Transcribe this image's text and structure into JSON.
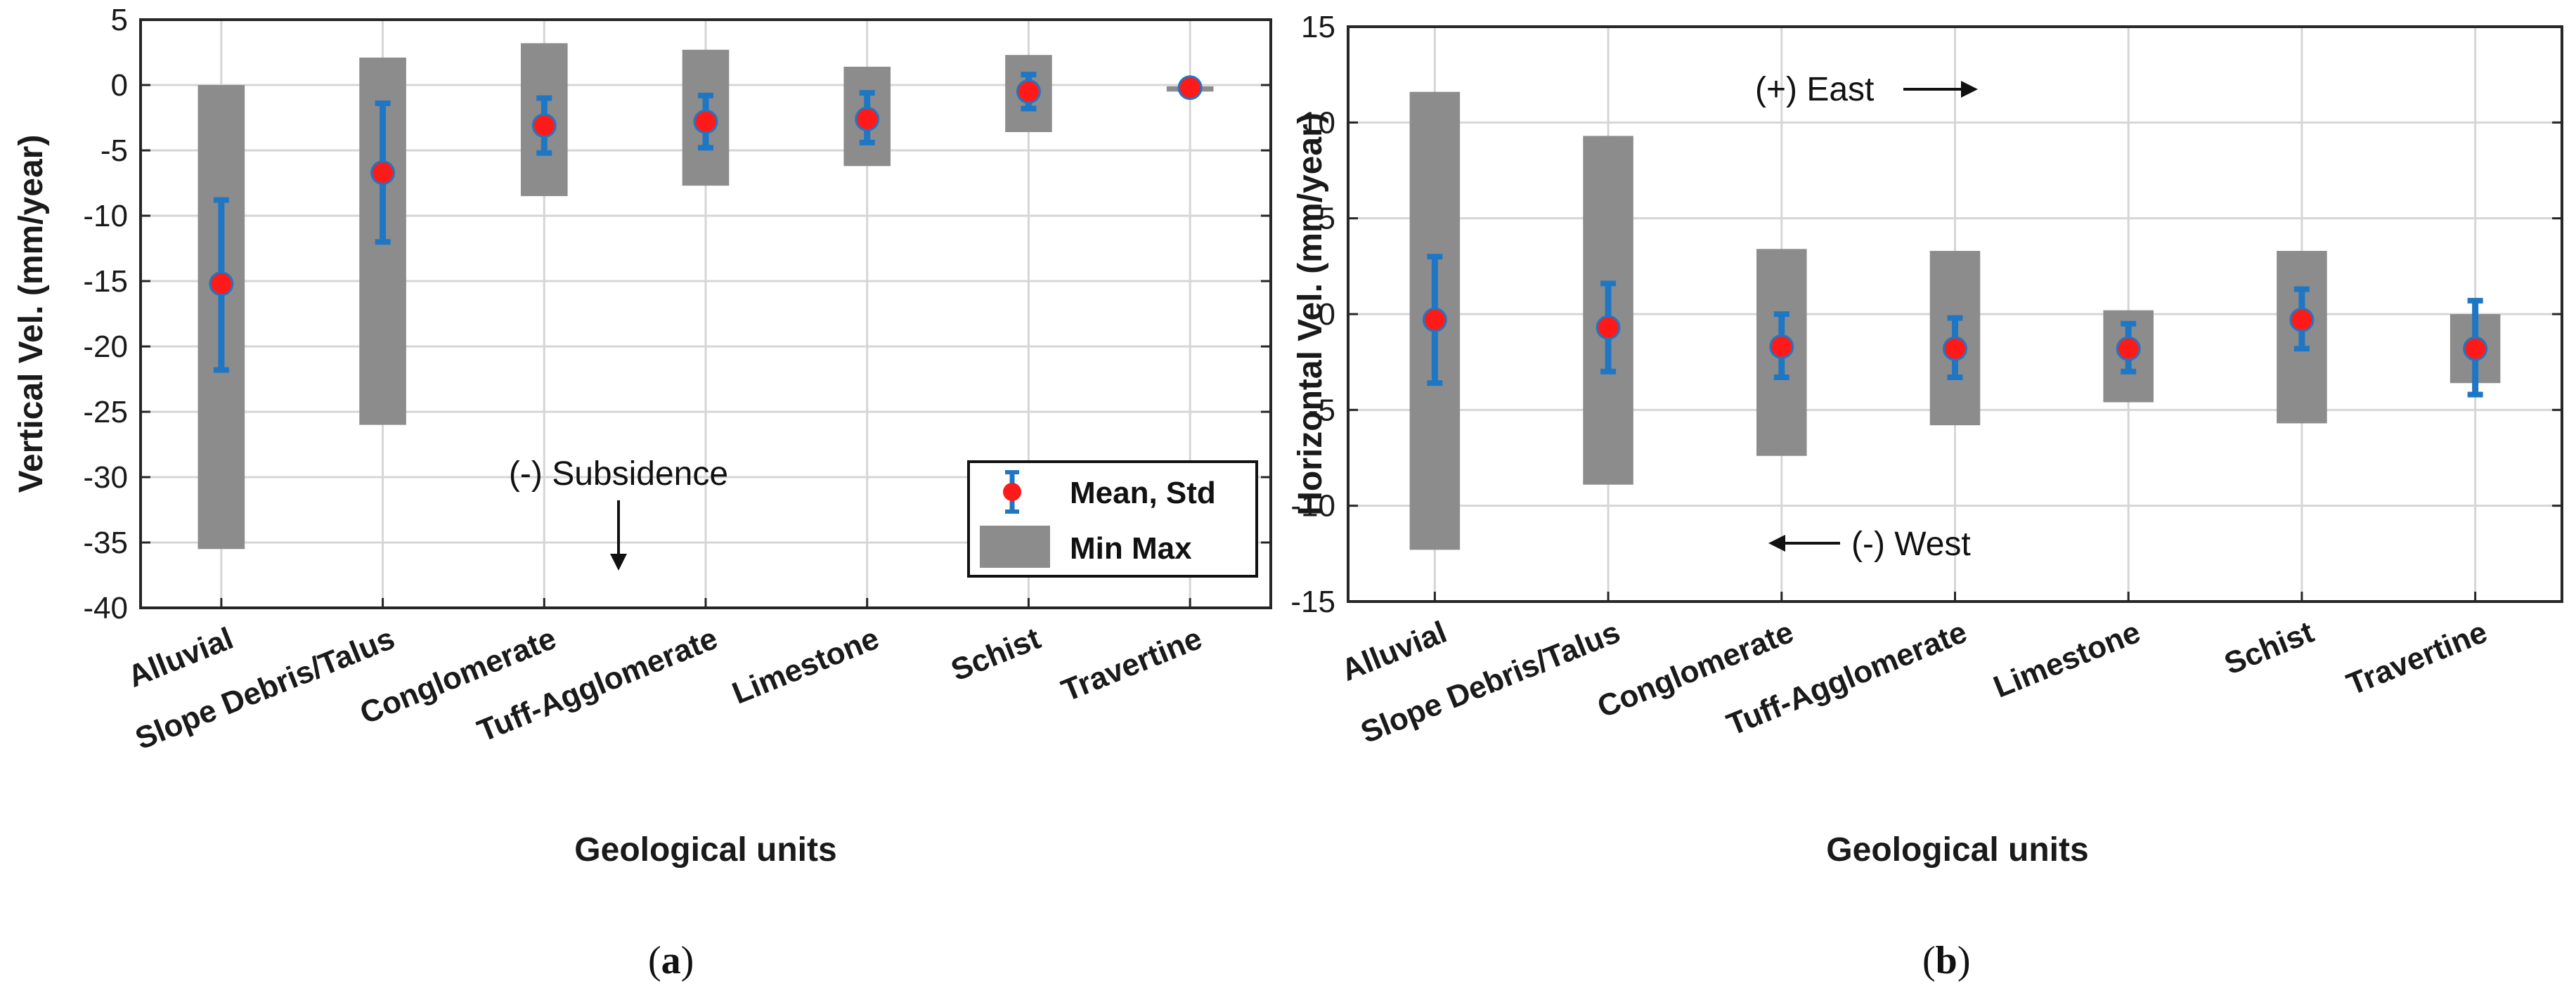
{
  "chart_data": [
    {
      "panel": "a",
      "type": "errorbar",
      "categories": [
        "Alluvial",
        "Slope Debris/Talus",
        "Conglomerate",
        "Tuff-Agglomerate",
        "Limestone",
        "Schist",
        "Travertine"
      ],
      "series": [
        {
          "name": "Mean, Std",
          "mean": [
            -15.2,
            -6.7,
            -3.1,
            -2.8,
            -2.6,
            -0.5,
            -0.2
          ],
          "std_low": [
            -21.8,
            -12.0,
            -5.2,
            -4.8,
            -4.4,
            -1.8,
            -0.4
          ],
          "std_high": [
            -8.8,
            -1.4,
            -1.0,
            -0.8,
            -0.6,
            0.8,
            0.1
          ]
        },
        {
          "name": "Min Max",
          "min": [
            -35.5,
            -26.0,
            -8.5,
            -7.7,
            -6.2,
            -3.6,
            -0.5
          ],
          "max": [
            0.0,
            2.1,
            3.2,
            2.7,
            1.4,
            2.3,
            -0.1
          ]
        }
      ],
      "yticks": [
        "5",
        "0",
        "-5",
        "-10",
        "-15",
        "-20",
        "-25",
        "-30",
        "-35",
        "-40"
      ],
      "ylim": [
        -40,
        5
      ],
      "ylabel": "Vertical Vel. (mm/year)",
      "xlabel": "Geological units",
      "annotations": [
        "(-) Subsidence"
      ],
      "legend": {
        "mean_label": "Mean, Std",
        "minmax_label": "Min Max",
        "position": "bottom-right"
      },
      "panel_label": "a"
    },
    {
      "panel": "b",
      "type": "errorbar",
      "categories": [
        "Alluvial",
        "Slope Debris/Talus",
        "Conglomerate",
        "Tuff-Agglomerate",
        "Limestone",
        "Schist",
        "Travertine"
      ],
      "series": [
        {
          "name": "Mean, Std",
          "mean": [
            -0.3,
            -0.7,
            -1.7,
            -1.8,
            -1.8,
            -0.3,
            -1.8
          ],
          "std_low": [
            -3.6,
            -3.0,
            -3.3,
            -3.3,
            -3.0,
            -1.8,
            -4.2
          ],
          "std_high": [
            3.0,
            1.6,
            0.0,
            -0.2,
            -0.5,
            1.3,
            0.7
          ]
        },
        {
          "name": "Min Max",
          "min": [
            -12.3,
            -8.9,
            -7.4,
            -5.8,
            -4.6,
            -5.7,
            -3.6
          ],
          "max": [
            11.6,
            9.3,
            3.4,
            3.3,
            0.2,
            3.3,
            0.0
          ]
        }
      ],
      "yticks": [
        "15",
        "10",
        "5",
        "0",
        "-5",
        "-10",
        "-15"
      ],
      "ylim": [
        -15,
        15
      ],
      "ylabel": "Horizontal Vel. (mm/year)",
      "xlabel": "Geological units",
      "annotations": [
        "(+) East",
        "(-) West"
      ],
      "panel_label": "b"
    }
  ],
  "colors": {
    "minmax": "#8c8c8c",
    "std": "#1f77c4",
    "mean": "#ff1a1a",
    "grid": "#d6d6d6",
    "axis": "#262626"
  }
}
